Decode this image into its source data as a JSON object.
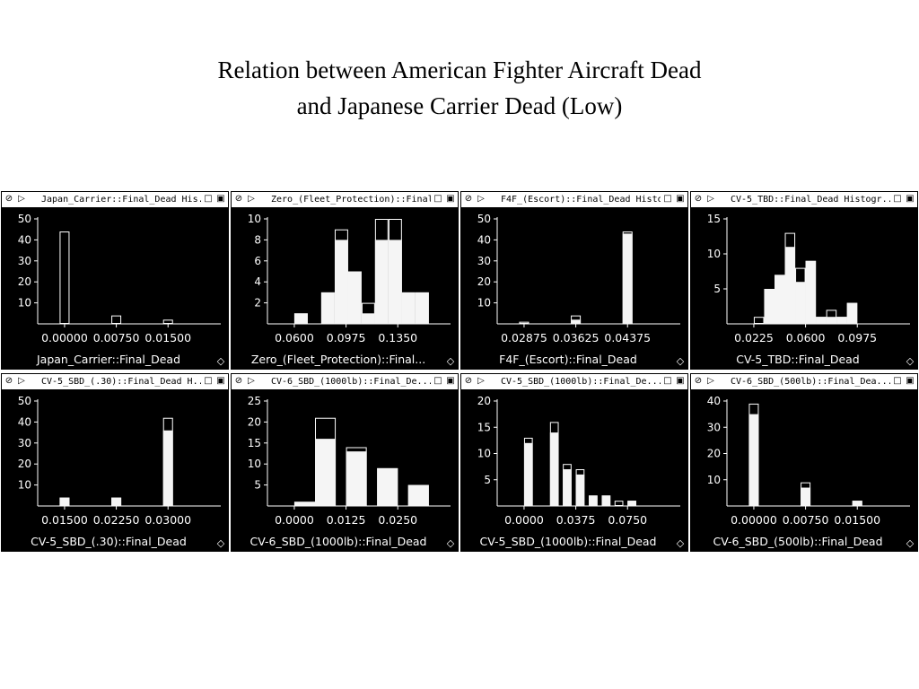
{
  "page": {
    "title_line1": "Relation between American Fighter Aircraft Dead",
    "title_line2": "and Japanese Carrier Dead (Low)"
  },
  "colors": {
    "window_bg": "#000000",
    "bar_fill": "#ffffff",
    "bar_highlight": "#000000",
    "text": "#ffffff"
  },
  "chart_data": [
    {
      "type": "bar",
      "window_title": "Japan_Carrier::Final_Dead His...",
      "xlabel": "Japan_Carrier::Final_Dead",
      "xticks": [
        "0.00000",
        "0.00750",
        "0.01500"
      ],
      "yticks": [
        "10",
        "20",
        "30",
        "40",
        "50"
      ],
      "ylim": [
        0,
        50
      ],
      "bins": [
        {
          "x": 0.0,
          "value": 44,
          "selected": 0
        },
        {
          "x": 0.0075,
          "value": 4,
          "selected": 0
        },
        {
          "x": 0.015,
          "value": 2,
          "selected": 0
        }
      ]
    },
    {
      "type": "bar",
      "window_title": "Zero_(Fleet_Protection)::Final...",
      "xlabel": "Zero_(Fleet_Protection)::Final...",
      "xticks": [
        "0.0600",
        "0.0975",
        "0.1350"
      ],
      "yticks": [
        "2",
        "4",
        "6",
        "8",
        "10"
      ],
      "ylim": [
        0,
        10
      ],
      "bins": [
        {
          "x": 0.06,
          "value": 1,
          "selected": 1
        },
        {
          "x": 0.0698,
          "value": 0,
          "selected": 0
        },
        {
          "x": 0.0795,
          "value": 3,
          "selected": 3
        },
        {
          "x": 0.0893,
          "value": 9,
          "selected": 8
        },
        {
          "x": 0.099,
          "value": 5,
          "selected": 5
        },
        {
          "x": 0.1088,
          "value": 2,
          "selected": 1
        },
        {
          "x": 0.1185,
          "value": 10,
          "selected": 8
        },
        {
          "x": 0.1283,
          "value": 10,
          "selected": 8
        },
        {
          "x": 0.138,
          "value": 3,
          "selected": 3
        },
        {
          "x": 0.1478,
          "value": 3,
          "selected": 3
        }
      ]
    },
    {
      "type": "bar",
      "window_title": "F4F_(Escort)::Final_Dead Histo...",
      "xlabel": "F4F_(Escort)::Final_Dead",
      "xticks": [
        "0.02875",
        "0.03625",
        "0.04375"
      ],
      "yticks": [
        "10",
        "20",
        "30",
        "40",
        "50"
      ],
      "ylim": [
        0,
        50
      ],
      "bins": [
        {
          "x": 0.02875,
          "value": 1,
          "selected": 0
        },
        {
          "x": 0.03625,
          "value": 4,
          "selected": 2
        },
        {
          "x": 0.04375,
          "value": 44,
          "selected": 43
        }
      ]
    },
    {
      "type": "bar",
      "window_title": "CV-5_TBD::Final_Dead Histogr...",
      "xlabel": "CV-5_TBD::Final_Dead",
      "xticks": [
        "0.0225",
        "0.0600",
        "0.0975"
      ],
      "yticks": [
        "5",
        "10",
        "15"
      ],
      "ylim": [
        0,
        15
      ],
      "bins": [
        {
          "x": 0.0225,
          "value": 1,
          "selected": 0
        },
        {
          "x": 0.03,
          "value": 5,
          "selected": 5
        },
        {
          "x": 0.0375,
          "value": 7,
          "selected": 7
        },
        {
          "x": 0.045,
          "value": 13,
          "selected": 11
        },
        {
          "x": 0.0525,
          "value": 8,
          "selected": 6
        },
        {
          "x": 0.06,
          "value": 9,
          "selected": 9
        },
        {
          "x": 0.0675,
          "value": 1,
          "selected": 1
        },
        {
          "x": 0.075,
          "value": 2,
          "selected": 1
        },
        {
          "x": 0.0825,
          "value": 1,
          "selected": 1
        },
        {
          "x": 0.09,
          "value": 3,
          "selected": 3
        }
      ]
    },
    {
      "type": "bar",
      "window_title": "CV-5_SBD_(.30)::Final_Dead H...",
      "xlabel": "CV-5_SBD_(.30)::Final_Dead",
      "xticks": [
        "0.01500",
        "0.02250",
        "0.03000"
      ],
      "yticks": [
        "10",
        "20",
        "30",
        "40",
        "50"
      ],
      "ylim": [
        0,
        50
      ],
      "bins": [
        {
          "x": 0.015,
          "value": 4,
          "selected": 4
        },
        {
          "x": 0.0225,
          "value": 4,
          "selected": 4
        },
        {
          "x": 0.03,
          "value": 42,
          "selected": 36
        }
      ]
    },
    {
      "type": "bar",
      "window_title": "CV-6_SBD_(1000lb)::Final_De...",
      "xlabel": "CV-6_SBD_(1000lb)::Final_Dead",
      "xticks": [
        "0.0000",
        "0.0125",
        "0.0250"
      ],
      "yticks": [
        "5",
        "10",
        "15",
        "20",
        "25"
      ],
      "ylim": [
        0,
        25
      ],
      "bins": [
        {
          "x": 0.0,
          "value": 1,
          "selected": 1
        },
        {
          "x": 0.005,
          "value": 21,
          "selected": 16
        },
        {
          "x": 0.0125,
          "value": 14,
          "selected": 13
        },
        {
          "x": 0.02,
          "value": 9,
          "selected": 9
        },
        {
          "x": 0.0275,
          "value": 5,
          "selected": 5
        }
      ]
    },
    {
      "type": "bar",
      "window_title": "CV-5_SBD_(1000lb)::Final_De...",
      "xlabel": "CV-5_SBD_(1000lb)::Final_Dead",
      "xticks": [
        "0.0000",
        "0.0375",
        "0.0750"
      ],
      "yticks": [
        "5",
        "10",
        "15",
        "20"
      ],
      "ylim": [
        0,
        20
      ],
      "bins": [
        {
          "x": 0.0,
          "value": 13,
          "selected": 12
        },
        {
          "x": 0.0125,
          "value": 0,
          "selected": 0
        },
        {
          "x": 0.0188,
          "value": 16,
          "selected": 14
        },
        {
          "x": 0.0281,
          "value": 8,
          "selected": 7
        },
        {
          "x": 0.0375,
          "value": 7,
          "selected": 6
        },
        {
          "x": 0.0469,
          "value": 2,
          "selected": 2
        },
        {
          "x": 0.0563,
          "value": 2,
          "selected": 2
        },
        {
          "x": 0.0656,
          "value": 1,
          "selected": 0
        },
        {
          "x": 0.075,
          "value": 1,
          "selected": 1
        }
      ]
    },
    {
      "type": "bar",
      "window_title": "CV-6_SBD_(500lb)::Final_Dea...",
      "xlabel": "CV-6_SBD_(500lb)::Final_Dead",
      "xticks": [
        "0.00000",
        "0.00750",
        "0.01500"
      ],
      "yticks": [
        "10",
        "20",
        "30",
        "40"
      ],
      "ylim": [
        0,
        40
      ],
      "bins": [
        {
          "x": 0.0,
          "value": 39,
          "selected": 35
        },
        {
          "x": 0.0075,
          "value": 9,
          "selected": 7
        },
        {
          "x": 0.015,
          "value": 2,
          "selected": 2
        }
      ]
    }
  ]
}
